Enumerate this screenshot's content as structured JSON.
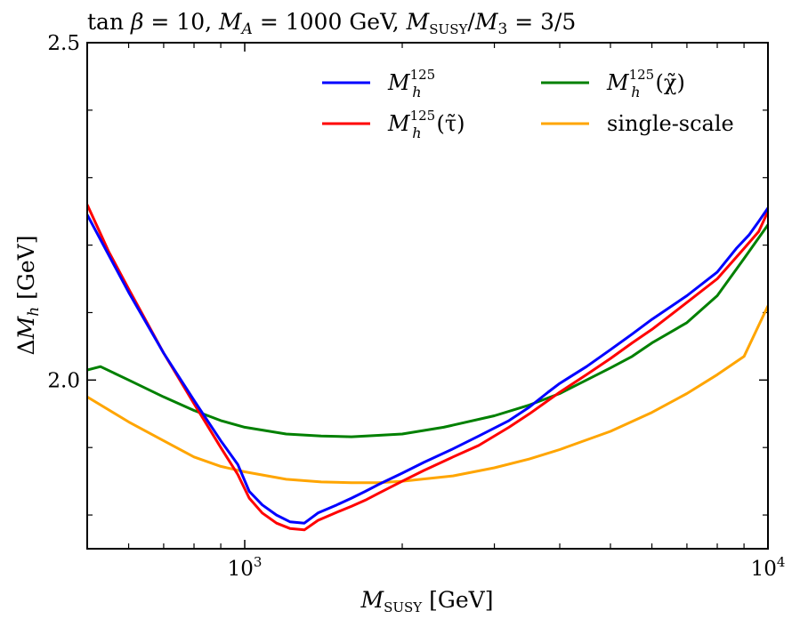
{
  "chart_data": {
    "type": "line",
    "title": "tan β = 10, M_A = 1000 GeV, M_SUSY/M_3 = 3/5",
    "title_parts": {
      "tan": "tan",
      "beta": "β",
      "eq10": " = 10, ",
      "MA_sym": "M",
      "MA_sub": "A",
      "eq1000": " = 1000 GeV, ",
      "Ms_sym": "M",
      "Ms_sub": "SUSY",
      "slash": "/",
      "M3_sym": "M",
      "M3_sub": "3",
      "ratio": " = 3/5"
    },
    "xlabel": "M_SUSY [GeV]",
    "xlabel_parts": {
      "sym": "M",
      "sub": "SUSY",
      "unit": " [GeV]"
    },
    "ylabel": "ΔM_h [GeV]",
    "ylabel_parts": {
      "delta": "Δ",
      "sym": "M",
      "sub": "h",
      "unit": " [GeV]"
    },
    "xscale": "log",
    "xlim": [
      500,
      10000
    ],
    "ylim": [
      1.75,
      2.5
    ],
    "yticks_major": [
      2.0,
      2.5
    ],
    "yticks_major_labels": [
      "2.0",
      "2.5"
    ],
    "yticks_minor": [
      1.8,
      1.9,
      2.1,
      2.2,
      2.3,
      2.4
    ],
    "xticks_major": [
      1000,
      10000
    ],
    "xticks_major_labels": [
      {
        "base": "10",
        "exp": "3"
      },
      {
        "base": "10",
        "exp": "4"
      }
    ],
    "xticks_minor": [
      600,
      700,
      800,
      900,
      2000,
      3000,
      4000,
      5000,
      6000,
      7000,
      8000,
      9000
    ],
    "legend_position": "top-right",
    "series": [
      {
        "name": "M_h^125",
        "legend": {
          "sym": "M",
          "sub": "h",
          "sup": "125",
          "suffix": ""
        },
        "color": "#0000ff",
        "x": [
          500,
          550,
          600,
          700,
          800,
          900,
          970,
          1020,
          1080,
          1150,
          1220,
          1300,
          1380,
          1500,
          1600,
          1700,
          1800,
          2000,
          2200,
          2500,
          2800,
          3200,
          3500,
          3800,
          4000,
          4500,
          5000,
          5500,
          6000,
          7000,
          8000,
          8700,
          9200,
          9600,
          10000
        ],
        "y": [
          2.245,
          2.185,
          2.13,
          2.04,
          1.97,
          1.91,
          1.875,
          1.835,
          1.815,
          1.8,
          1.79,
          1.788,
          1.803,
          1.815,
          1.825,
          1.835,
          1.845,
          1.862,
          1.878,
          1.898,
          1.917,
          1.94,
          1.96,
          1.982,
          1.995,
          2.02,
          2.045,
          2.068,
          2.09,
          2.125,
          2.16,
          2.195,
          2.215,
          2.235,
          2.255
        ]
      },
      {
        "name": "M_h^125(τ̃)",
        "legend": {
          "sym": "M",
          "sub": "h",
          "sup": "125",
          "suffix": "(τ̃)"
        },
        "color": "#ff0000",
        "x": [
          500,
          550,
          600,
          700,
          800,
          900,
          970,
          1020,
          1080,
          1150,
          1220,
          1300,
          1380,
          1500,
          1600,
          1700,
          1800,
          2000,
          2200,
          2500,
          2800,
          3200,
          3500,
          4000,
          4500,
          5000,
          5500,
          6000,
          7000,
          8000,
          9000,
          9600,
          10000
        ],
        "y": [
          2.26,
          2.19,
          2.135,
          2.04,
          1.965,
          1.9,
          1.86,
          1.825,
          1.803,
          1.788,
          1.78,
          1.778,
          1.792,
          1.804,
          1.813,
          1.822,
          1.832,
          1.85,
          1.866,
          1.886,
          1.903,
          1.93,
          1.95,
          1.982,
          2.008,
          2.032,
          2.055,
          2.075,
          2.115,
          2.15,
          2.195,
          2.22,
          2.25
        ]
      },
      {
        "name": "M_h^125(χ̃)",
        "legend": {
          "sym": "M",
          "sub": "h",
          "sup": "125",
          "suffix": "(χ̃)"
        },
        "color": "#008000",
        "x": [
          500,
          530,
          600,
          700,
          800,
          900,
          1000,
          1200,
          1400,
          1600,
          1800,
          2000,
          2400,
          3000,
          3500,
          4000,
          4500,
          5000,
          5500,
          6000,
          7000,
          8000,
          9000,
          10000
        ],
        "y": [
          2.015,
          2.02,
          2.0,
          1.975,
          1.955,
          1.94,
          1.93,
          1.92,
          1.917,
          1.916,
          1.918,
          1.92,
          1.93,
          1.947,
          1.963,
          1.98,
          2.0,
          2.018,
          2.035,
          2.055,
          2.085,
          2.125,
          2.18,
          2.23
        ]
      },
      {
        "name": "single-scale",
        "legend": {
          "sym": "",
          "sub": "",
          "sup": "",
          "suffix": "single-scale"
        },
        "color": "#ffa500",
        "x": [
          500,
          600,
          700,
          800,
          900,
          1000,
          1200,
          1400,
          1600,
          1800,
          2000,
          2500,
          3000,
          3500,
          4000,
          5000,
          6000,
          7000,
          8000,
          9000,
          10000
        ],
        "y": [
          1.975,
          1.938,
          1.91,
          1.886,
          1.872,
          1.864,
          1.853,
          1.849,
          1.848,
          1.848,
          1.85,
          1.858,
          1.87,
          1.883,
          1.897,
          1.924,
          1.952,
          1.98,
          2.008,
          2.035,
          2.11
        ]
      }
    ]
  }
}
